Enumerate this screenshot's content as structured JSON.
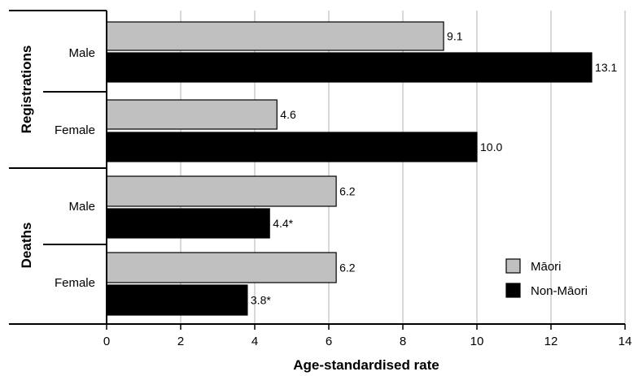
{
  "chart_data": {
    "type": "bar",
    "orientation": "horizontal",
    "xlabel": "Age-standardised rate",
    "ylabel": "",
    "xlim": [
      0,
      14
    ],
    "xticks": [
      0,
      2,
      4,
      6,
      8,
      10,
      12,
      14
    ],
    "grid": "vertical",
    "legend_position": "bottom-right",
    "groups": [
      {
        "label": "Registrations",
        "subgroups": [
          {
            "label": "Male",
            "values": [
              9.1,
              13.1
            ],
            "value_labels": [
              "9.1",
              "13.1"
            ]
          },
          {
            "label": "Female",
            "values": [
              4.6,
              10.0
            ],
            "value_labels": [
              "4.6",
              "10.0"
            ]
          }
        ]
      },
      {
        "label": "Deaths",
        "subgroups": [
          {
            "label": "Male",
            "values": [
              6.2,
              4.4
            ],
            "value_labels": [
              "6.2",
              "4.4*"
            ]
          },
          {
            "label": "Female",
            "values": [
              6.2,
              3.8
            ],
            "value_labels": [
              "6.2",
              "3.8*"
            ]
          }
        ]
      }
    ],
    "series": [
      {
        "name": "Māori",
        "color": "#c0c0c0"
      },
      {
        "name": "Non-Māori",
        "color": "#000000"
      }
    ]
  }
}
